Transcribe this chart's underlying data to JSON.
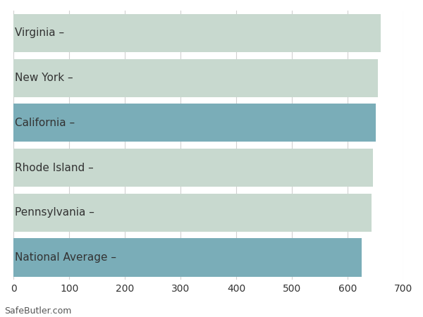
{
  "categories": [
    "Virginia",
    "New York",
    "California",
    "Rhode Island",
    "Pennsylvania",
    "National Average"
  ],
  "values": [
    660,
    654,
    651,
    646,
    643,
    625
  ],
  "bar_colors": [
    "#c8d9cf",
    "#c8d9cf",
    "#7aadb8",
    "#c8d9cf",
    "#c8d9cf",
    "#7aadb8"
  ],
  "xlim": [
    0,
    700
  ],
  "xticks": [
    0,
    100,
    200,
    300,
    400,
    500,
    600,
    700
  ],
  "background_color": "#ffffff",
  "grid_color": "#d0d0d0",
  "footer_text": "SafeButler.com",
  "bar_height": 0.85,
  "figsize": [
    6.0,
    4.5
  ],
  "dpi": 100,
  "label_fontsize": 11,
  "tick_fontsize": 10,
  "footer_fontsize": 9,
  "label_color": "#333333",
  "tick_color": "#333333",
  "footer_color": "#555555"
}
